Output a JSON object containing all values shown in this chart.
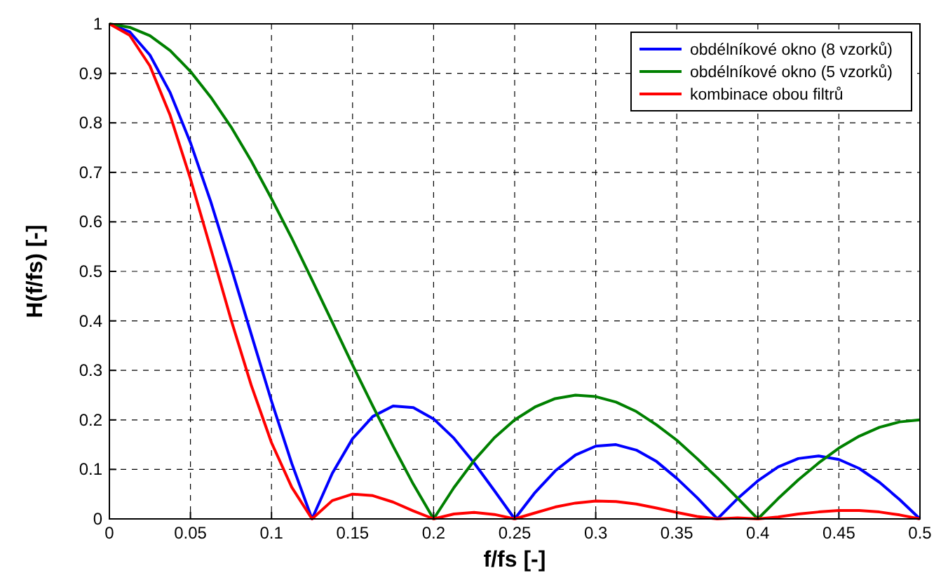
{
  "chart_data": {
    "type": "line",
    "xlabel": "f/fs [-]",
    "ylabel": "H(f/fs) [-]",
    "x": [
      0,
      0.0125,
      0.025,
      0.0375,
      0.05,
      0.0625,
      0.075,
      0.0875,
      0.1,
      0.1125,
      0.125,
      0.1375,
      0.15,
      0.1625,
      0.175,
      0.1875,
      0.2,
      0.2125,
      0.225,
      0.2375,
      0.25,
      0.2625,
      0.275,
      0.2875,
      0.3,
      0.3125,
      0.325,
      0.3375,
      0.35,
      0.3625,
      0.375,
      0.3875,
      0.4,
      0.4125,
      0.425,
      0.4375,
      0.45,
      0.4625,
      0.475,
      0.4875,
      0.5
    ],
    "series": [
      {
        "name": "obdélníkové okno (8 vzorků)",
        "color": "#0000ff",
        "values": [
          1,
          0.984,
          0.937,
          0.861,
          0.76,
          0.641,
          0.509,
          0.373,
          0.238,
          0.112,
          0,
          0.092,
          0.162,
          0.207,
          0.228,
          0.225,
          0.202,
          0.163,
          0.113,
          0.057,
          0,
          0.053,
          0.097,
          0.129,
          0.147,
          0.15,
          0.139,
          0.116,
          0.082,
          0.043,
          0,
          0.041,
          0.077,
          0.105,
          0.122,
          0.127,
          0.12,
          0.102,
          0.074,
          0.039,
          0
        ]
      },
      {
        "name": "obdélníkové okno (5 vzorků)",
        "color": "#008000",
        "values": [
          1,
          0.993,
          0.976,
          0.946,
          0.904,
          0.852,
          0.792,
          0.723,
          0.647,
          0.567,
          0.483,
          0.397,
          0.311,
          0.228,
          0.147,
          0.07,
          0,
          0.063,
          0.118,
          0.164,
          0.2,
          0.226,
          0.243,
          0.25,
          0.247,
          0.236,
          0.217,
          0.19,
          0.159,
          0.122,
          0.083,
          0.042,
          0,
          0.041,
          0.079,
          0.113,
          0.143,
          0.167,
          0.185,
          0.196,
          0.2
        ]
      },
      {
        "name": "kombinace obou filtrů",
        "color": "#ff0000",
        "values": [
          1,
          0.977,
          0.915,
          0.815,
          0.687,
          0.546,
          0.403,
          0.27,
          0.154,
          0.064,
          0,
          0.037,
          0.05,
          0.047,
          0.034,
          0.016,
          0,
          0.01,
          0.013,
          0.009,
          0,
          0.012,
          0.024,
          0.032,
          0.036,
          0.035,
          0.03,
          0.022,
          0.013,
          0.005,
          0,
          0.002,
          0,
          0.004,
          0.01,
          0.014,
          0.017,
          0.017,
          0.014,
          0.008,
          0
        ]
      }
    ],
    "xlim": [
      0,
      0.5
    ],
    "xticks": [
      0,
      0.05,
      0.1,
      0.15,
      0.2,
      0.25,
      0.3,
      0.35,
      0.4,
      0.45,
      0.5
    ],
    "ylim": [
      0,
      1
    ],
    "yticks": [
      0,
      0.1,
      0.2,
      0.3,
      0.4,
      0.5,
      0.6,
      0.7,
      0.8,
      0.9,
      1
    ],
    "grid": true,
    "legend": "top right",
    "marker": "none",
    "line_style": "solid"
  }
}
